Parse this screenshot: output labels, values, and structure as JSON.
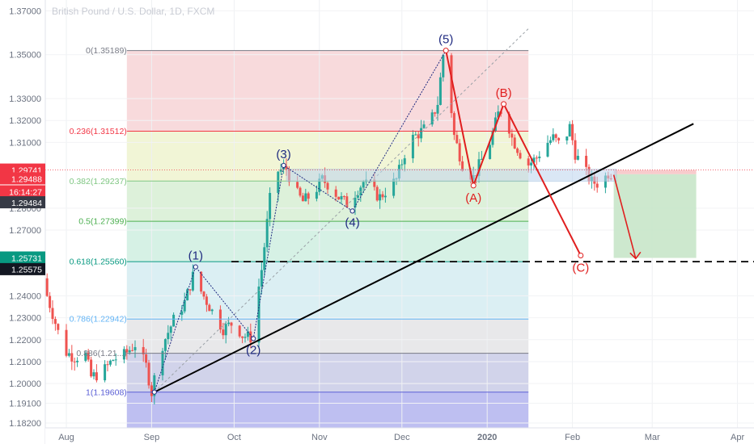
{
  "chart_data": {
    "type": "candlestick",
    "title": "British Pound / U.S. Dollar, 1D, FXCM",
    "ylim": [
      1.182,
      1.372
    ],
    "y_ticks": [
      1.37,
      1.35,
      1.33,
      1.32,
      1.31,
      1.28,
      1.27,
      1.24,
      1.23,
      1.22,
      1.21,
      1.2,
      1.191,
      1.182
    ],
    "x_ticks": [
      {
        "label": "Aug",
        "day": 0
      },
      {
        "label": "Sep",
        "day": 31
      },
      {
        "label": "Oct",
        "day": 61
      },
      {
        "label": "Nov",
        "day": 92
      },
      {
        "label": "Dec",
        "day": 122
      },
      {
        "label": "2020",
        "day": 153
      },
      {
        "label": "Feb",
        "day": 184
      },
      {
        "label": "Mar",
        "day": 213
      },
      {
        "label": "Apr",
        "day": 244
      }
    ],
    "price_path": [
      [
        -8,
        1.248
      ],
      [
        -4,
        1.232
      ],
      [
        0,
        1.215
      ],
      [
        4,
        1.212
      ],
      [
        8,
        1.213
      ],
      [
        10,
        1.203
      ],
      [
        14,
        1.205
      ],
      [
        18,
        1.211
      ],
      [
        22,
        1.213
      ],
      [
        26,
        1.218
      ],
      [
        30,
        1.208
      ],
      [
        32,
        1.196
      ],
      [
        35,
        1.215
      ],
      [
        40,
        1.229
      ],
      [
        44,
        1.237
      ],
      [
        47,
        1.249
      ],
      [
        50,
        1.242
      ],
      [
        54,
        1.233
      ],
      [
        58,
        1.225
      ],
      [
        62,
        1.228
      ],
      [
        65,
        1.222
      ],
      [
        68,
        1.221
      ],
      [
        72,
        1.252
      ],
      [
        75,
        1.284
      ],
      [
        78,
        1.297
      ],
      [
        81,
        1.298
      ],
      [
        84,
        1.288
      ],
      [
        87,
        1.283
      ],
      [
        91,
        1.287
      ],
      [
        94,
        1.293
      ],
      [
        97,
        1.29
      ],
      [
        100,
        1.285
      ],
      [
        103,
        1.282
      ],
      [
        106,
        1.287
      ],
      [
        109,
        1.292
      ],
      [
        112,
        1.288
      ],
      [
        115,
        1.285
      ],
      [
        118,
        1.289
      ],
      [
        121,
        1.293
      ],
      [
        124,
        1.305
      ],
      [
        127,
        1.312
      ],
      [
        130,
        1.315
      ],
      [
        133,
        1.318
      ],
      [
        136,
        1.328
      ],
      [
        138,
        1.35
      ],
      [
        140,
        1.336
      ],
      [
        142,
        1.313
      ],
      [
        145,
        1.3
      ],
      [
        147,
        1.297
      ],
      [
        149,
        1.294
      ],
      [
        152,
        1.302
      ],
      [
        155,
        1.31
      ],
      [
        158,
        1.323
      ],
      [
        160,
        1.326
      ],
      [
        163,
        1.312
      ],
      [
        166,
        1.305
      ],
      [
        169,
        1.3
      ],
      [
        172,
        1.303
      ],
      [
        175,
        1.309
      ],
      [
        178,
        1.312
      ],
      [
        181,
        1.308
      ],
      [
        184,
        1.317
      ],
      [
        186,
        1.305
      ],
      [
        189,
        1.298
      ],
      [
        192,
        1.292
      ],
      [
        195,
        1.291
      ],
      [
        198,
        1.296
      ]
    ],
    "fibonacci": [
      {
        "ratio": "0",
        "price": 1.35189,
        "label": "0(1.35189)",
        "color": "#787b86"
      },
      {
        "ratio": "0.236",
        "price": 1.31512,
        "label": "0.236(1.31512)",
        "color": "#f23645"
      },
      {
        "ratio": "0.382",
        "price": 1.29237,
        "label": "0.382(1.29237)",
        "color": "#81c784"
      },
      {
        "ratio": "0.5",
        "price": 1.27399,
        "label": "0.5(1.27399)",
        "color": "#4caf50"
      },
      {
        "ratio": "0.618",
        "price": 1.2556,
        "label": "0.618(1.25560)",
        "color": "#089981"
      },
      {
        "ratio": "0.786",
        "price": 1.22942,
        "label": "0.786(1.22942)",
        "color": "#64b5f6"
      },
      {
        "ratio": "0.886",
        "price": 1.2138,
        "label": "0.886(1.21...)",
        "color": "#787b86"
      },
      {
        "ratio": "1",
        "price": 1.19608,
        "label": "1(1.19608)",
        "color": "#5b5fd6"
      }
    ],
    "fib_day_range": [
      22,
      168
    ],
    "elliott_impulse": [
      {
        "label": "(1)",
        "day": 47,
        "price": 1.2532,
        "text_pos": "above"
      },
      {
        "label": "(2)",
        "day": 68,
        "price": 1.2205,
        "text_pos": "below"
      },
      {
        "label": "(3)",
        "day": 79,
        "price": 1.2995,
        "text_pos": "above"
      },
      {
        "label": "(4)",
        "day": 104,
        "price": 1.2787,
        "text_pos": "below"
      },
      {
        "label": "(5)",
        "day": 138,
        "price": 1.3519,
        "text_pos": "above"
      }
    ],
    "elliott_impulse_start": {
      "day": 32,
      "price": 1.1961
    },
    "elliott_correction": [
      {
        "label": "(A)",
        "day": 148,
        "price": 1.2903,
        "text_pos": "below"
      },
      {
        "label": "(B)",
        "day": 159,
        "price": 1.3275,
        "text_pos": "above"
      },
      {
        "label": "(C)",
        "day": 187,
        "price": 1.2584,
        "text_pos": "below"
      }
    ],
    "trendline": [
      {
        "day": 32,
        "price": 1.1961
      },
      {
        "day": 228,
        "price": 1.3185
      }
    ],
    "support_dashed": {
      "price": 1.2556,
      "day_start": 60,
      "day_end": 250
    },
    "projection_arrow": [
      {
        "day": 199,
        "price": 1.2952
      },
      {
        "day": 207,
        "price": 1.257
      }
    ],
    "position_box": {
      "day_start": 199,
      "day_end": 229,
      "entry": 1.2955,
      "target": 1.2573,
      "stop": 1.2974
    },
    "price_tags": [
      {
        "text": "1.29741",
        "price": 1.29741,
        "color": "#f23645"
      },
      {
        "text": "1.29488",
        "price": 1.2934,
        "color": "#f23645"
      },
      {
        "text": "16:14:27",
        "price": 1.2875,
        "color": "#f23645"
      },
      {
        "text": "1.29484",
        "price": 1.2825,
        "color": "#363a45"
      },
      {
        "text": "1.25731",
        "price": 1.25731,
        "color": "#089981"
      },
      {
        "text": "1.25575",
        "price": 1.252,
        "color": "#131722"
      }
    ],
    "current_price": 1.2948,
    "colors": {
      "up": "#26a69a",
      "down": "#ef5350",
      "impulse": "#1f2a80",
      "correction": "#e01f1f",
      "trend": "#000000"
    }
  }
}
